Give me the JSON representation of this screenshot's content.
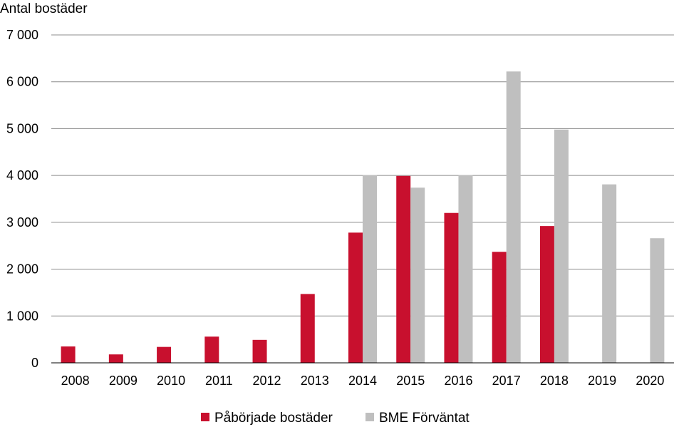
{
  "chart_data": {
    "type": "bar",
    "title": "Antal bostäder",
    "ylabel": "Antal bostäder",
    "xlabel": "",
    "ylim": [
      0,
      7000
    ],
    "yticks": [
      0,
      1000,
      2000,
      3000,
      4000,
      5000,
      6000,
      7000
    ],
    "ytick_labels": [
      "0",
      "1 000",
      "2 000",
      "3 000",
      "4 000",
      "5 000",
      "6 000",
      "7 000"
    ],
    "categories": [
      "2008",
      "2009",
      "2010",
      "2011",
      "2012",
      "2013",
      "2014",
      "2015",
      "2016",
      "2017",
      "2018",
      "2019",
      "2020"
    ],
    "series": [
      {
        "name": "Påbörjade bostäder",
        "color": "#c8102e",
        "values": [
          350,
          180,
          340,
          560,
          490,
          1470,
          2780,
          3990,
          3200,
          2370,
          2920,
          null,
          null
        ]
      },
      {
        "name": "BME Förväntat",
        "color": "#bfbfbf",
        "values": [
          null,
          null,
          null,
          null,
          null,
          null,
          4010,
          3740,
          4010,
          6220,
          4980,
          3810,
          2660
        ]
      }
    ],
    "grid": true,
    "legend_position": "bottom"
  }
}
